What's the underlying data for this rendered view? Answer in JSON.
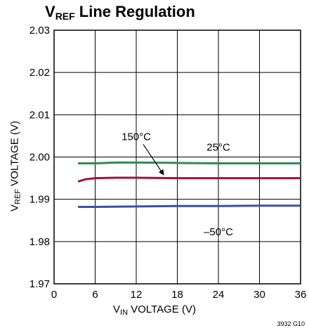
{
  "title_main": "V",
  "title_sub": "REF",
  "title_rest": " Line Regulation",
  "xaxis": {
    "main": "V",
    "sub": "IN",
    "rest": " VOLTAGE (V)"
  },
  "yaxis": {
    "main": "V",
    "sub": "REF",
    "rest": " VOLTAGE (V)"
  },
  "figure_code": "3932 G10",
  "colors": {
    "grid": "#000000",
    "25C": "#2e8b57",
    "150C": "#a0133c",
    "-50C": "#3a4fa8"
  },
  "chart_data": {
    "type": "line",
    "xlim": [
      0,
      36
    ],
    "ylim": [
      1.97,
      2.03
    ],
    "xticks": [
      "0",
      "6",
      "12",
      "18",
      "24",
      "30",
      "36"
    ],
    "yticks": [
      "1.97",
      "1.98",
      "1.99",
      "2.00",
      "2.01",
      "2.02",
      "2.03"
    ],
    "grid": true,
    "series": [
      {
        "name": "25°C",
        "color": "#2e8b57",
        "x": [
          3.5,
          6,
          9,
          12,
          18,
          24,
          30,
          36
        ],
        "y": [
          1.9985,
          1.9985,
          1.9987,
          1.9987,
          1.9986,
          1.9985,
          1.9985,
          1.9985
        ]
      },
      {
        "name": "150°C",
        "color": "#a0133c",
        "x": [
          3.5,
          4.5,
          6,
          9,
          12,
          18,
          24,
          30,
          36
        ],
        "y": [
          1.9942,
          1.9947,
          1.995,
          1.9951,
          1.9951,
          1.995,
          1.995,
          1.995,
          1.995
        ]
      },
      {
        "name": "–50°C",
        "color": "#3a4fa8",
        "x": [
          3.5,
          6,
          12,
          18,
          24,
          30,
          36
        ],
        "y": [
          1.9882,
          1.9882,
          1.9883,
          1.9884,
          1.9884,
          1.9885,
          1.9885
        ]
      }
    ],
    "annotations": [
      {
        "text": "150°C",
        "x": 12,
        "y": 2.004,
        "arrow_to": [
          16,
          1.9953
        ]
      },
      {
        "text": "25°C",
        "x": 24,
        "y": 2.0015
      },
      {
        "text": "–50°C",
        "x": 24,
        "y": 1.9815
      }
    ]
  }
}
